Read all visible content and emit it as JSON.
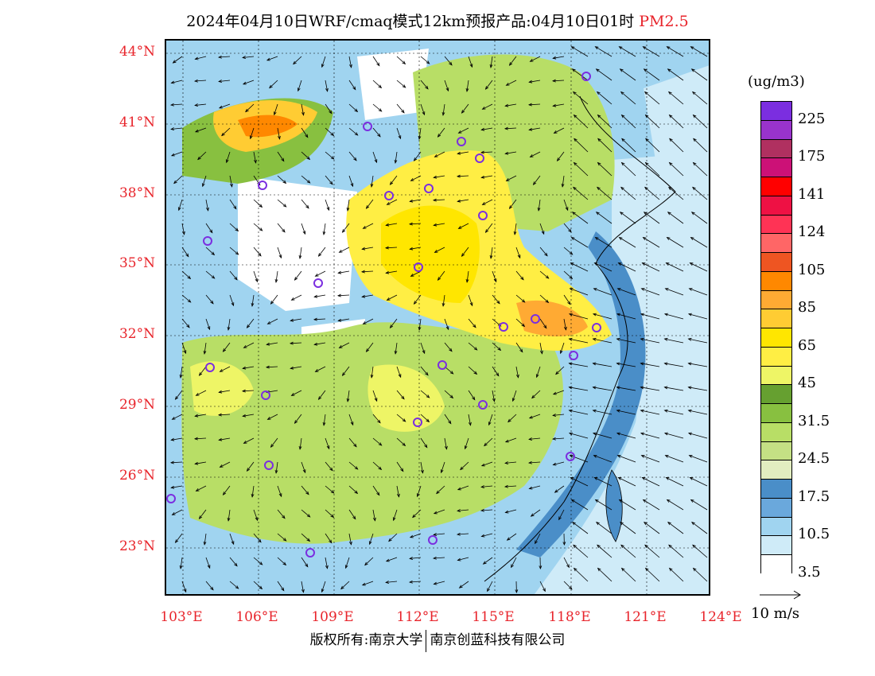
{
  "title": {
    "text": "2024年04月10日WRF/cmaq模式12km预报产品:04月10日01时",
    "pollutant": "PM2.5"
  },
  "axes": {
    "latitudes": [
      "44°N",
      "41°N",
      "38°N",
      "35°N",
      "32°N",
      "29°N",
      "26°N",
      "23°N"
    ],
    "longitudes": [
      "103°E",
      "106°E",
      "109°E",
      "112°E",
      "115°E",
      "118°E",
      "121°E",
      "124°E"
    ]
  },
  "colorbar": {
    "unit": "(ug/m3)",
    "colors": [
      "#7b2ee0",
      "#9933cc",
      "#b03060",
      "#cc1177",
      "#ff0000",
      "#ee1144",
      "#ff3355",
      "#ff6666",
      "#ee5522",
      "#ff8800",
      "#ffaa33",
      "#ffcc33",
      "#ffe600",
      "#ffee44",
      "#eef566",
      "#66a030",
      "#88c040",
      "#b8de66",
      "#c4e084",
      "#e2edc0",
      "#4a8ec8",
      "#6aa8dc",
      "#a0d4f0",
      "#cfebf8",
      "#ffffff"
    ],
    "labels": [
      "225",
      "175",
      "141",
      "124",
      "105",
      "85",
      "65",
      "45",
      "31.5",
      "24.5",
      "17.5",
      "10.5",
      "3.5"
    ]
  },
  "wind_reference": {
    "label": "10 m/s"
  },
  "copyright": {
    "part1": "版权所有:南京大学",
    "part2": "南京创蓝科技有限公司"
  }
}
